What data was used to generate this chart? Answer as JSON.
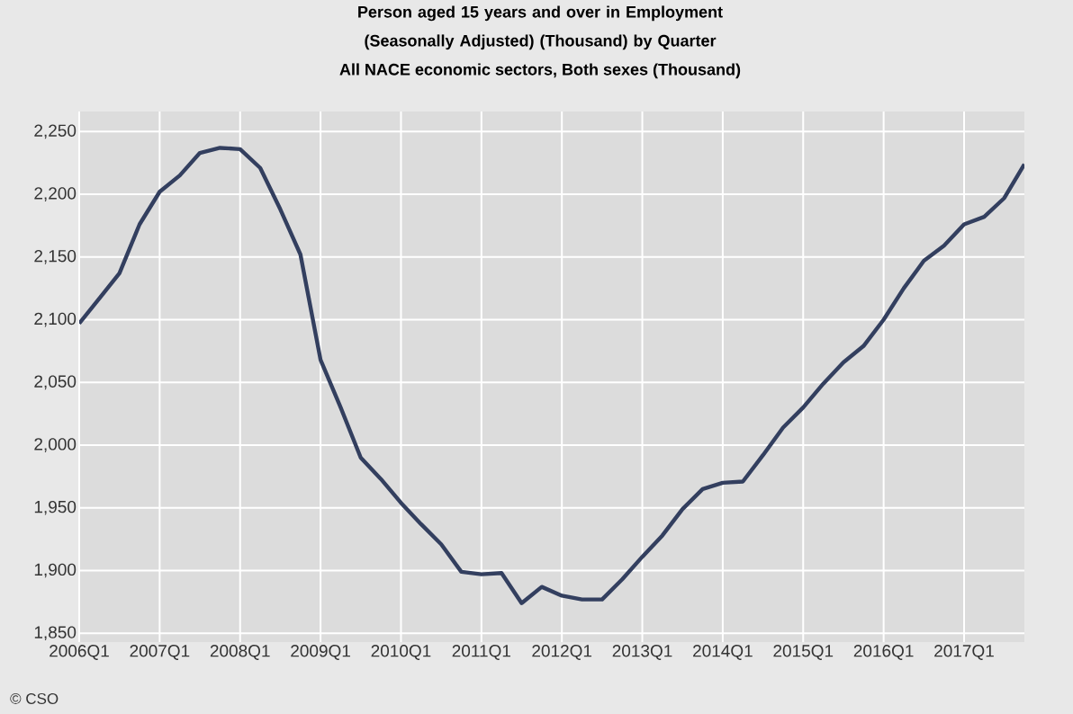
{
  "chart_data": {
    "type": "line",
    "title": "Person aged 15 years and over in Employment (Seasonally Adjusted) (Thousand) by Quarter",
    "subtitle": "All NACE economic sectors, Both sexes (Thousand)",
    "annotations": [
      "© CSO"
    ],
    "categories": [
      "2006Q1",
      null,
      null,
      null,
      "2007Q1",
      null,
      null,
      null,
      "2008Q1",
      null,
      null,
      null,
      "2009Q1",
      null,
      null,
      null,
      "2010Q1",
      null,
      null,
      null,
      "2011Q1",
      null,
      null,
      null,
      "2012Q1",
      null,
      null,
      null,
      "2013Q1",
      null,
      null,
      null,
      "2014Q1",
      null,
      null,
      null,
      "2015Q1",
      null,
      null,
      null,
      "2016Q1",
      null,
      null,
      null,
      "2017Q1",
      null,
      null,
      null
    ],
    "series": [
      {
        "color": "#333f5f",
        "values": [
          2097,
          2117,
          2137,
          2176,
          2202,
          2215,
          2233,
          2237,
          2236,
          2221,
          2188,
          2152,
          2068,
          2030,
          1990,
          1973,
          1954,
          1937,
          1921,
          1899,
          1897,
          1898,
          1874,
          1887,
          1880,
          1877,
          1877,
          1893,
          1911,
          1928,
          1949,
          1965,
          1970,
          1971,
          1992,
          2014,
          2030,
          2049,
          2066,
          2079,
          2100,
          2125,
          2147,
          2159,
          2176,
          2182,
          2197,
          2224
        ]
      }
    ],
    "ylim": [
      1843,
      2266
    ],
    "yticks": [
      {
        "value": 1850,
        "label": "1,850"
      },
      {
        "value": 1900,
        "label": "1,900"
      },
      {
        "value": 1950,
        "label": "1,950"
      },
      {
        "value": 2000,
        "label": "2,000"
      },
      {
        "value": 2050,
        "label": "2,050"
      },
      {
        "value": 2100,
        "label": "2,100"
      },
      {
        "value": 2150,
        "label": "2,150"
      },
      {
        "value": 2200,
        "label": "2,200"
      },
      {
        "value": 2250,
        "label": "2,250"
      }
    ],
    "grid": true,
    "marker": "none",
    "line_style": "solid"
  }
}
